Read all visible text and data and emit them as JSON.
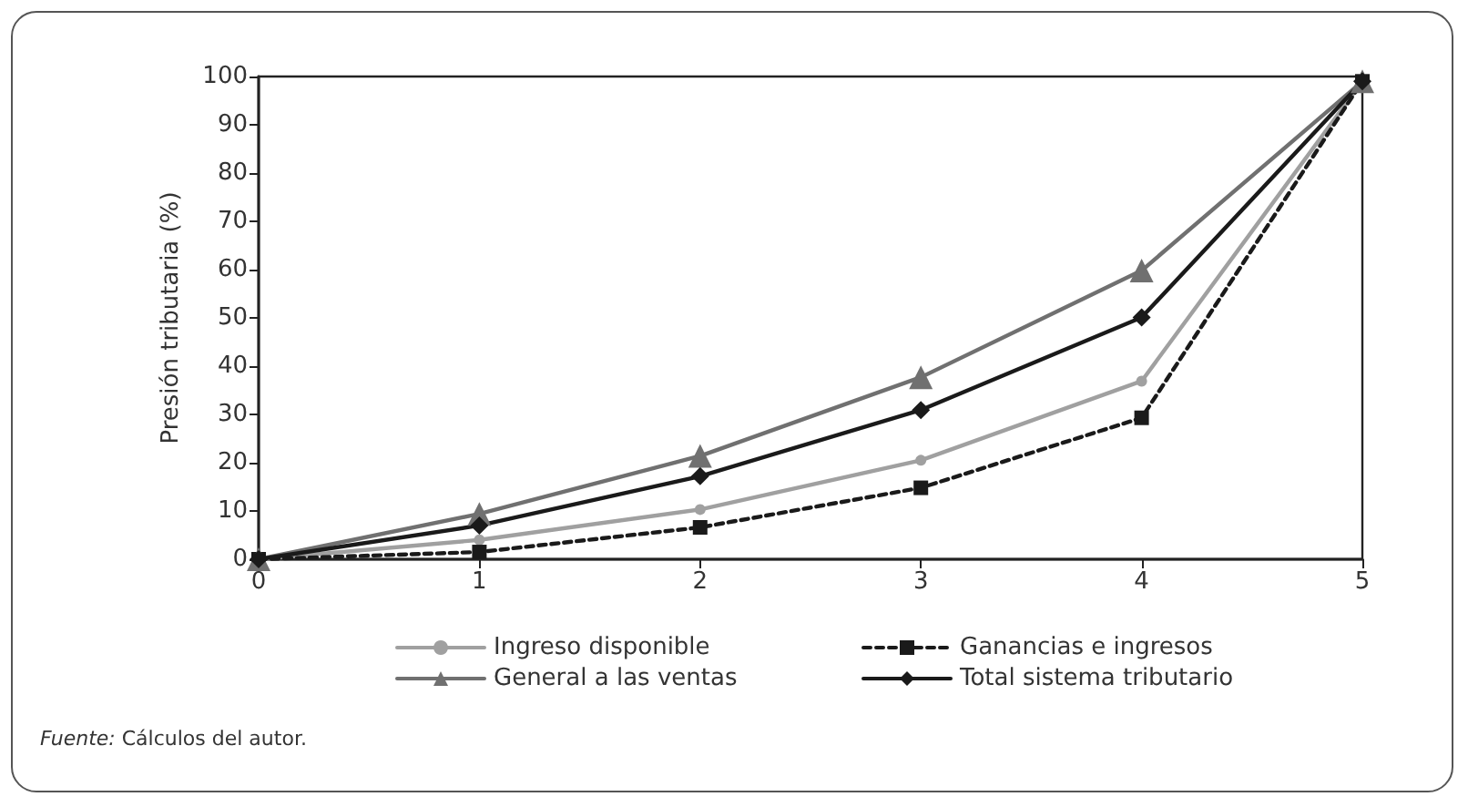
{
  "chart_data": {
    "type": "line",
    "ylabel": "Presión tributaria (%)",
    "x": [
      0,
      1,
      2,
      3,
      4,
      5
    ],
    "xlim": [
      0,
      5
    ],
    "xticks": [
      0,
      1,
      2,
      3,
      4,
      5
    ],
    "ylim": [
      0,
      100
    ],
    "yticks": [
      0,
      10,
      20,
      30,
      40,
      50,
      60,
      70,
      80,
      90,
      100
    ],
    "grid": false,
    "legend": "bottom",
    "series": [
      {
        "name": "Ingreso disponible",
        "color": "#a0a0a0",
        "marker": "circle",
        "line_style": "solid",
        "values": [
          0,
          4,
          10.3,
          20.5,
          36.9,
          99
        ]
      },
      {
        "name": "Ganancias e ingresos",
        "color": "#1a1a1a",
        "marker": "square",
        "line_style": "dashed",
        "values": [
          0,
          1.5,
          6.6,
          14.8,
          29.3,
          99
        ]
      },
      {
        "name": "General a las ventas",
        "color": "#707070",
        "marker": "triangle",
        "line_style": "solid",
        "values": [
          0,
          9.4,
          21.4,
          37.7,
          59.8,
          99
        ]
      },
      {
        "name": "Total sistema tributario",
        "color": "#1a1a1a",
        "marker": "diamond",
        "line_style": "solid",
        "values": [
          0,
          7,
          17.2,
          30.9,
          50.1,
          99
        ]
      }
    ],
    "annotations": [
      "Fuente: Cálculos del autor."
    ]
  }
}
